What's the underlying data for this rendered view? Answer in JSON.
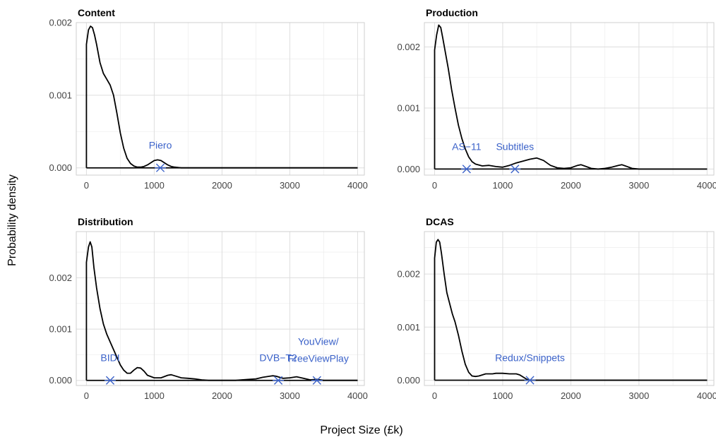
{
  "axis_titles": {
    "x": "Project Size (£k)",
    "y": "Probability density"
  },
  "colors": {
    "curve": "#000000",
    "annotation": "#3b62c9",
    "grid": "#dedede"
  },
  "chart_data": [
    {
      "type": "line",
      "title": "Content",
      "xlim": [
        -150,
        4100
      ],
      "ylim": [
        -0.0001,
        0.002
      ],
      "x_ticks": [
        0,
        1000,
        2000,
        3000,
        4000
      ],
      "y_ticks": [
        0,
        0.001,
        0.002
      ],
      "y_tick_labels": [
        "0.000",
        "0.001",
        "0.002"
      ],
      "x_tick_labels": [
        "0",
        "1000",
        "2000",
        "3000",
        "4000"
      ],
      "series": [
        {
          "x": [
            0,
            0,
            30,
            60,
            90,
            120,
            150,
            200,
            250,
            300,
            350,
            400,
            450,
            500,
            550,
            600,
            650,
            700,
            750,
            800,
            850,
            900,
            950,
            1000,
            1050,
            1100,
            1150,
            1200,
            1250,
            1300,
            1400,
            1600,
            2000,
            4000
          ],
          "y": [
            0,
            0.0017,
            0.0019,
            0.00195,
            0.00193,
            0.00183,
            0.0017,
            0.00145,
            0.0013,
            0.00122,
            0.00114,
            0.001,
            0.00075,
            0.00048,
            0.00027,
            0.00013,
            6e-05,
            2.5e-05,
            1e-05,
            1e-05,
            2e-05,
            4e-05,
            7e-05,
            0.0001,
            0.00011,
            0.0001,
            7e-05,
            4e-05,
            2e-05,
            1e-05,
            0,
            0,
            0,
            0
          ]
        }
      ],
      "annotations": [
        {
          "label": "Piero",
          "x": 1090,
          "y": 0
        }
      ]
    },
    {
      "type": "line",
      "title": "Production",
      "xlim": [
        -150,
        4100
      ],
      "ylim": [
        -0.0001,
        0.0024
      ],
      "x_ticks": [
        0,
        1000,
        2000,
        3000,
        4000
      ],
      "y_ticks": [
        0,
        0.001,
        0.002
      ],
      "y_tick_labels": [
        "0.000",
        "0.001",
        "0.002"
      ],
      "x_tick_labels": [
        "0",
        "1000",
        "2000",
        "3000",
        "4000"
      ],
      "series": [
        {
          "x": [
            0,
            0,
            30,
            60,
            90,
            120,
            160,
            200,
            250,
            300,
            350,
            400,
            450,
            500,
            550,
            600,
            700,
            800,
            900,
            1000,
            1100,
            1200,
            1300,
            1400,
            1500,
            1600,
            1700,
            1800,
            1900,
            2000,
            2100,
            2150,
            2200,
            2300,
            2400,
            2500,
            2600,
            2700,
            2750,
            2800,
            2900,
            3000,
            4000
          ],
          "y": [
            0,
            0.00195,
            0.0022,
            0.00236,
            0.00232,
            0.00215,
            0.0019,
            0.00165,
            0.0013,
            0.001,
            0.00072,
            0.0005,
            0.00033,
            0.0002,
            0.00012,
            8e-05,
            5e-05,
            6e-05,
            4e-05,
            3e-05,
            6e-05,
            0.0001,
            0.00013,
            0.00016,
            0.00018,
            0.00014,
            6e-05,
            2e-05,
            1e-05,
            2e-05,
            6e-05,
            7e-05,
            5e-05,
            1e-05,
            0,
            1e-05,
            3e-05,
            6e-05,
            7e-05,
            5e-05,
            1e-05,
            0,
            0
          ]
        }
      ],
      "annotations": [
        {
          "label": "AS−11",
          "x": 470,
          "y": 0
        },
        {
          "label": "Subtitles",
          "x": 1180,
          "y": 0
        }
      ]
    },
    {
      "type": "line",
      "title": "Distribution",
      "xlim": [
        -150,
        4100
      ],
      "ylim": [
        -0.0001,
        0.0029
      ],
      "x_ticks": [
        0,
        1000,
        2000,
        3000,
        4000
      ],
      "y_ticks": [
        0,
        0.001,
        0.002
      ],
      "y_tick_labels": [
        "0.000",
        "0.001",
        "0.002"
      ],
      "x_tick_labels": [
        "0",
        "1000",
        "2000",
        "3000",
        "4000"
      ],
      "series": [
        {
          "x": [
            0,
            0,
            30,
            55,
            80,
            110,
            150,
            200,
            250,
            300,
            350,
            400,
            450,
            500,
            550,
            600,
            650,
            700,
            750,
            800,
            850,
            900,
            1000,
            1100,
            1200,
            1250,
            1300,
            1400,
            1500,
            1600,
            1700,
            1800,
            2000,
            2200,
            2400,
            2500,
            2600,
            2700,
            2750,
            2800,
            2850,
            2900,
            3000,
            3100,
            3200,
            3300,
            3400,
            3500,
            4000
          ],
          "y": [
            0,
            0.0023,
            0.0026,
            0.0027,
            0.0026,
            0.0022,
            0.0018,
            0.0014,
            0.0011,
            0.0009,
            0.00075,
            0.0006,
            0.00045,
            0.0003,
            0.0002,
            0.00014,
            0.00014,
            0.0002,
            0.00025,
            0.00024,
            0.00018,
            0.0001,
            5e-05,
            5e-05,
            0.0001,
            0.00011,
            9e-05,
            5e-05,
            4e-05,
            3e-05,
            1e-05,
            0,
            0,
            0,
            2e-05,
            3e-05,
            6e-05,
            8e-05,
            9e-05,
            8e-05,
            6e-05,
            4e-05,
            5e-05,
            7e-05,
            4e-05,
            1e-05,
            2e-05,
            0,
            0
          ]
        }
      ],
      "annotations": [
        {
          "label": "BIDI",
          "x": 350,
          "y": 0
        },
        {
          "label": "DVB−T2",
          "x": 2830,
          "y": 0
        },
        {
          "label": "YouView/",
          "label2": "FreeViewPlay",
          "x": 3400,
          "y": 0
        }
      ]
    },
    {
      "type": "line",
      "title": "DCAS",
      "xlim": [
        -150,
        4100
      ],
      "ylim": [
        -0.0001,
        0.0028
      ],
      "x_ticks": [
        0,
        1000,
        2000,
        3000,
        4000
      ],
      "y_ticks": [
        0,
        0.001,
        0.002
      ],
      "y_tick_labels": [
        "0.000",
        "0.001",
        "0.002"
      ],
      "x_tick_labels": [
        "0",
        "1000",
        "2000",
        "3000",
        "4000"
      ],
      "series": [
        {
          "x": [
            0,
            0,
            25,
            50,
            75,
            100,
            140,
            180,
            220,
            260,
            300,
            350,
            400,
            450,
            500,
            550,
            600,
            650,
            700,
            750,
            800,
            850,
            900,
            950,
            1000,
            1100,
            1200,
            1250,
            1300,
            1350,
            1400,
            1500,
            4000
          ],
          "y": [
            0,
            0.0023,
            0.0026,
            0.00265,
            0.0026,
            0.0024,
            0.002,
            0.00165,
            0.00145,
            0.00125,
            0.0011,
            0.00085,
            0.00055,
            0.0003,
            0.00015,
            8e-05,
            7e-05,
            8e-05,
            0.0001,
            0.00012,
            0.00012,
            0.00012,
            0.00013,
            0.00013,
            0.00013,
            0.00012,
            0.00012,
            0.0001,
            6e-05,
            2e-05,
            0,
            0,
            0
          ]
        }
      ],
      "annotations": [
        {
          "label": "Redux/Snippets",
          "x": 1400,
          "y": 0
        }
      ]
    }
  ]
}
